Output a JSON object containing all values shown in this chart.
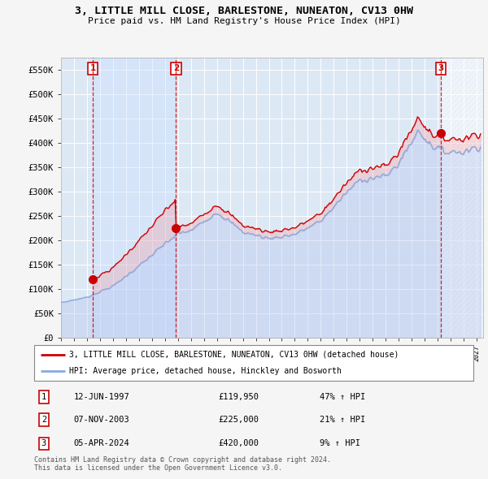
{
  "title": "3, LITTLE MILL CLOSE, BARLESTONE, NUNEATON, CV13 0HW",
  "subtitle": "Price paid vs. HM Land Registry's House Price Index (HPI)",
  "background_color": "#f5f5f5",
  "plot_bg_color": "#dde8f5",
  "hpi_line_color": "#88aadd",
  "price_line_color": "#cc0000",
  "ylim": [
    0,
    575000
  ],
  "yticks": [
    0,
    50000,
    100000,
    150000,
    200000,
    250000,
    300000,
    350000,
    400000,
    450000,
    500000,
    550000
  ],
  "ytick_labels": [
    "£0",
    "£50K",
    "£100K",
    "£150K",
    "£200K",
    "£250K",
    "£300K",
    "£350K",
    "£400K",
    "£450K",
    "£500K",
    "£550K"
  ],
  "sales": [
    {
      "num": 1,
      "date_num": 1997.45,
      "price": 119950,
      "label": "12-JUN-1997",
      "pct": "47%",
      "dir": "↑"
    },
    {
      "num": 2,
      "date_num": 2003.85,
      "price": 225000,
      "label": "07-NOV-2003",
      "pct": "21%",
      "dir": "↑"
    },
    {
      "num": 3,
      "date_num": 2024.26,
      "price": 420000,
      "label": "05-APR-2024",
      "pct": "9%",
      "dir": "↑"
    }
  ],
  "legend_line1": "3, LITTLE MILL CLOSE, BARLESTONE, NUNEATON, CV13 0HW (detached house)",
  "legend_line2": "HPI: Average price, detached house, Hinckley and Bosworth",
  "footer1": "Contains HM Land Registry data © Crown copyright and database right 2024.",
  "footer2": "This data is licensed under the Open Government Licence v3.0.",
  "xmin": 1995.0,
  "xmax": 2027.5
}
